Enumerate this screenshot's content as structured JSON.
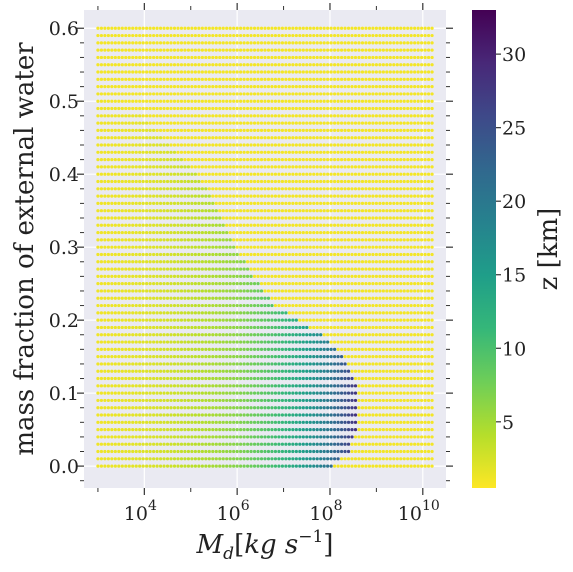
{
  "chart_data": {
    "type": "scatter",
    "xlabel": "M_d[kg s^{-1}]",
    "ylabel": "mass fraction of external water",
    "x_scale": "log",
    "xlim_log10": [
      2.7,
      10.5
    ],
    "ylim": [
      -0.03,
      0.625
    ],
    "x_ticks": [
      {
        "base": "10",
        "exp": "4",
        "value": 10000
      },
      {
        "base": "10",
        "exp": "6",
        "value": 1000000
      },
      {
        "base": "10",
        "exp": "8",
        "value": 100000000
      },
      {
        "base": "10",
        "exp": "10",
        "value": 10000000000
      }
    ],
    "y_ticks": [
      {
        "label": "0.0",
        "value": 0.0
      },
      {
        "label": "0.1",
        "value": 0.1
      },
      {
        "label": "0.2",
        "value": 0.2
      },
      {
        "label": "0.3",
        "value": 0.3
      },
      {
        "label": "0.4",
        "value": 0.4
      },
      {
        "label": "0.5",
        "value": 0.5
      },
      {
        "label": "0.6",
        "value": 0.6
      }
    ],
    "grid": {
      "log10_x_start": 3.0,
      "log10_x_end": 10.2,
      "x_count": 97,
      "y_start": 0.0,
      "y_end": 0.6,
      "y_count": 61
    },
    "plume_boundary": [
      {
        "y": 0.0,
        "log10_x_max": 8.05
      },
      {
        "y": 0.02,
        "log10_x_max": 8.4
      },
      {
        "y": 0.05,
        "log10_x_max": 8.55
      },
      {
        "y": 0.08,
        "log10_x_max": 8.6
      },
      {
        "y": 0.1,
        "log10_x_max": 8.6
      },
      {
        "y": 0.12,
        "log10_x_max": 8.5
      },
      {
        "y": 0.14,
        "log10_x_max": 8.35
      },
      {
        "y": 0.16,
        "log10_x_max": 8.15
      },
      {
        "y": 0.18,
        "log10_x_max": 7.8
      },
      {
        "y": 0.2,
        "log10_x_max": 7.3
      },
      {
        "y": 0.22,
        "log10_x_max": 6.8
      },
      {
        "y": 0.24,
        "log10_x_max": 6.55
      },
      {
        "y": 0.26,
        "log10_x_max": 6.35
      },
      {
        "y": 0.28,
        "log10_x_max": 6.15
      },
      {
        "y": 0.3,
        "log10_x_max": 5.95
      },
      {
        "y": 0.32,
        "log10_x_max": 5.8
      },
      {
        "y": 0.34,
        "log10_x_max": 5.65
      },
      {
        "y": 0.36,
        "log10_x_max": 5.5
      },
      {
        "y": 0.38,
        "log10_x_max": 5.35
      },
      {
        "y": 0.4,
        "log10_x_max": 5.1
      },
      {
        "y": 0.42,
        "log10_x_max": 4.85
      },
      {
        "y": 0.44,
        "log10_x_max": 4.55
      },
      {
        "y": 0.46,
        "log10_x_max": 4.2
      },
      {
        "y": 0.48,
        "log10_x_max": 3.9
      },
      {
        "y": 0.5,
        "log10_x_max": 3.2
      },
      {
        "y": 0.52,
        "log10_x_max": 2.9
      }
    ],
    "fill_value_km": 1,
    "colorbar": {
      "label": "z [km]",
      "min": 0.5,
      "max": 33,
      "ticks": [
        {
          "label": "5",
          "value": 5
        },
        {
          "label": "10",
          "value": 10
        },
        {
          "label": "15",
          "value": 15
        },
        {
          "label": "20",
          "value": 20
        },
        {
          "label": "25",
          "value": 25
        },
        {
          "label": "30",
          "value": 30
        }
      ],
      "colormap": "viridis_r",
      "stops": [
        "#fde725",
        "#b5de2b",
        "#6ece58",
        "#35b779",
        "#1f9e89",
        "#26828e",
        "#31688e",
        "#3e4989",
        "#482878",
        "#440154"
      ]
    },
    "plot_background": "#eaeaf2",
    "gridline_color": "#ffffff"
  }
}
